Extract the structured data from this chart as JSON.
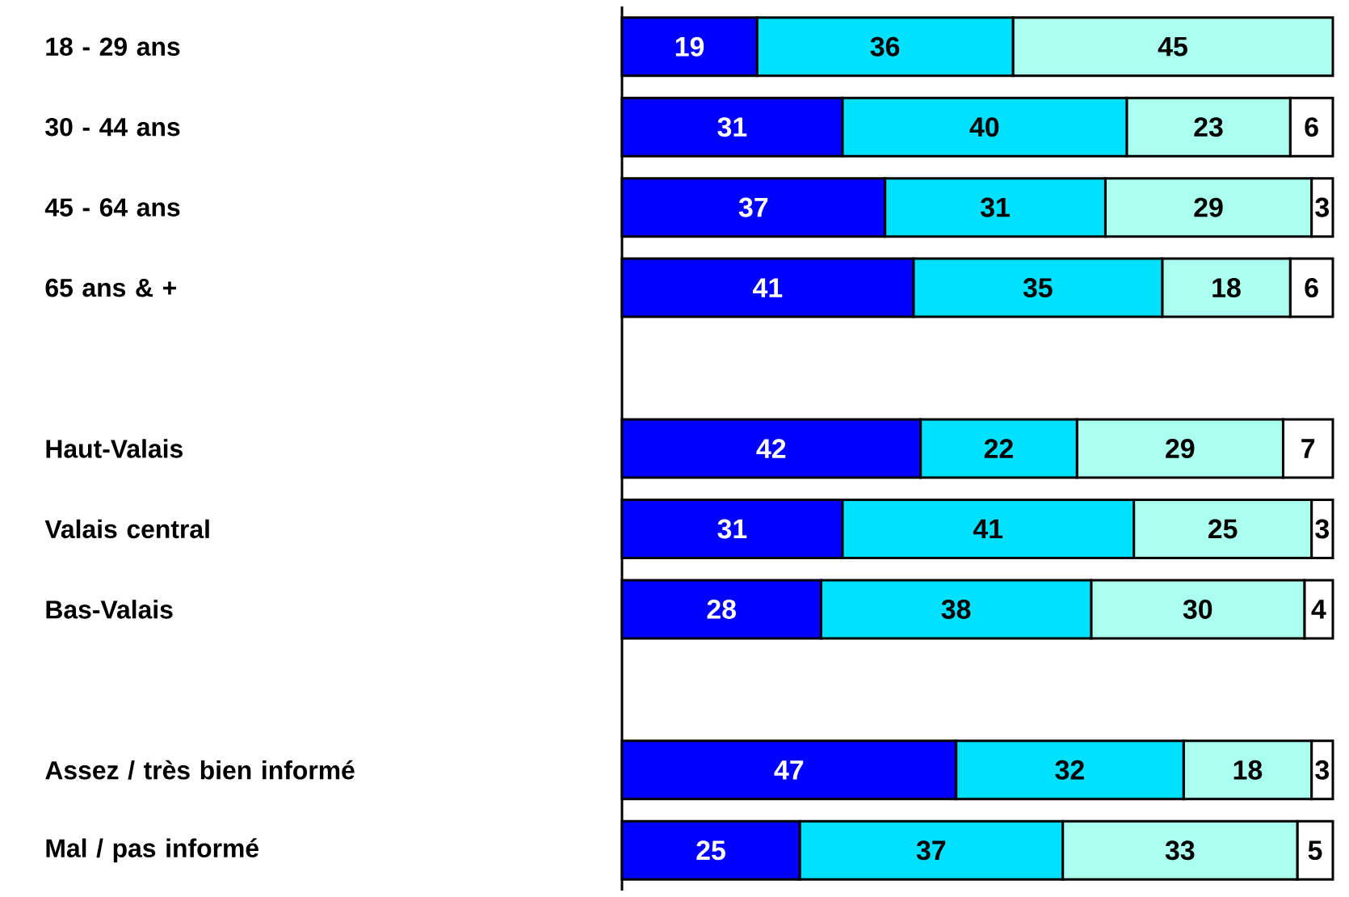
{
  "chart_data": {
    "type": "bar",
    "orientation": "horizontal",
    "stacked": true,
    "data_labels": true,
    "tick_labels": "y",
    "categories": [
      "18 - 29 ans",
      "30 - 44 ans",
      "45 - 64 ans",
      "65 ans & +",
      null,
      "Haut-Valais",
      "Valais central",
      "Bas-Valais",
      null,
      "Assez / très bien informé",
      "Mal / pas informé"
    ],
    "series": [
      {
        "color": "#0000ff",
        "values": [
          19,
          31,
          37,
          41,
          null,
          42,
          31,
          28,
          null,
          47,
          25
        ]
      },
      {
        "color": "#00e0ff",
        "values": [
          36,
          40,
          31,
          35,
          null,
          22,
          41,
          38,
          null,
          32,
          37
        ]
      },
      {
        "color": "#aaffee",
        "values": [
          45,
          23,
          29,
          18,
          null,
          29,
          25,
          30,
          null,
          18,
          33
        ]
      },
      {
        "color": "#ffffff",
        "values": [
          null,
          6,
          3,
          6,
          null,
          7,
          3,
          4,
          null,
          3,
          5
        ]
      }
    ]
  }
}
